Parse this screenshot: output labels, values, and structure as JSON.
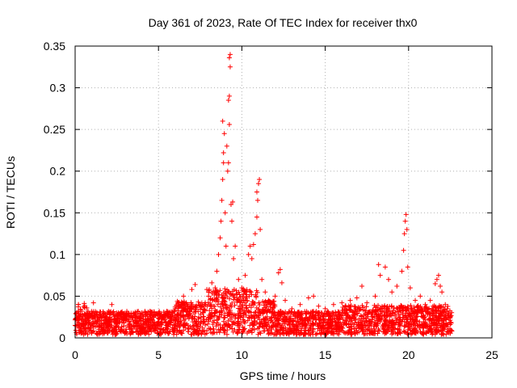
{
  "chart_data": {
    "type": "scatter",
    "title": "Day 361 of 2023, Rate Of TEC Index for receiver thx0",
    "xlabel": "GPS time / hours",
    "ylabel": "ROTI / TECUs",
    "xlim": [
      0,
      25
    ],
    "ylim": [
      0,
      0.35
    ],
    "xticks": [
      0,
      5,
      10,
      15,
      20,
      25
    ],
    "xtick_labels": [
      "0",
      "5",
      "10",
      "15",
      "20",
      "25"
    ],
    "yticks": [
      0,
      0.05,
      0.1,
      0.15,
      0.2,
      0.25,
      0.3,
      0.35
    ],
    "ytick_labels": [
      "0",
      "0.05",
      "0.1",
      "0.15",
      "0.2",
      "0.25",
      "0.3",
      "0.35"
    ],
    "grid": true,
    "marker": "+",
    "color": "#ff0000",
    "series": [
      {
        "points": [
          [
            0.0,
            0.015
          ],
          [
            0.2,
            0.04
          ],
          [
            0.4,
            0.032
          ],
          [
            0.7,
            0.036
          ],
          [
            1.0,
            0.03
          ],
          [
            1.1,
            0.042
          ],
          [
            1.5,
            0.028
          ],
          [
            2.0,
            0.032
          ],
          [
            2.2,
            0.04
          ],
          [
            2.6,
            0.03
          ],
          [
            3.0,
            0.028
          ],
          [
            3.5,
            0.026
          ],
          [
            4.0,
            0.03
          ],
          [
            4.5,
            0.032
          ],
          [
            5.0,
            0.028
          ],
          [
            5.5,
            0.032
          ],
          [
            6.0,
            0.035
          ],
          [
            6.5,
            0.05
          ],
          [
            7.0,
            0.058
          ],
          [
            7.2,
            0.064
          ],
          [
            7.6,
            0.042
          ],
          [
            7.9,
            0.058
          ],
          [
            8.0,
            0.05
          ],
          [
            8.2,
            0.066
          ],
          [
            8.4,
            0.06
          ],
          [
            8.5,
            0.08
          ],
          [
            8.6,
            0.1
          ],
          [
            8.7,
            0.12
          ],
          [
            8.75,
            0.14
          ],
          [
            8.8,
            0.165
          ],
          [
            8.85,
            0.19
          ],
          [
            8.9,
            0.21
          ],
          [
            8.95,
            0.245
          ],
          [
            8.85,
            0.26
          ],
          [
            8.9,
            0.222
          ],
          [
            9.0,
            0.15
          ],
          [
            9.05,
            0.11
          ],
          [
            9.1,
            0.23
          ],
          [
            9.15,
            0.2
          ],
          [
            9.2,
            0.21
          ],
          [
            9.25,
            0.256
          ],
          [
            9.2,
            0.285
          ],
          [
            9.25,
            0.29
          ],
          [
            9.3,
            0.34
          ],
          [
            9.25,
            0.336
          ],
          [
            9.3,
            0.325
          ],
          [
            9.35,
            0.16
          ],
          [
            9.4,
            0.14
          ],
          [
            9.45,
            0.163
          ],
          [
            9.5,
            0.095
          ],
          [
            9.6,
            0.11
          ],
          [
            9.8,
            0.07
          ],
          [
            10.0,
            0.06
          ],
          [
            10.2,
            0.075
          ],
          [
            10.4,
            0.1
          ],
          [
            10.5,
            0.11
          ],
          [
            10.6,
            0.095
          ],
          [
            10.7,
            0.112
          ],
          [
            10.8,
            0.125
          ],
          [
            10.9,
            0.145
          ],
          [
            10.95,
            0.165
          ],
          [
            11.0,
            0.185
          ],
          [
            11.05,
            0.19
          ],
          [
            10.9,
            0.175
          ],
          [
            11.1,
            0.13
          ],
          [
            11.2,
            0.07
          ],
          [
            11.4,
            0.055
          ],
          [
            11.6,
            0.045
          ],
          [
            12.0,
            0.05
          ],
          [
            12.2,
            0.078
          ],
          [
            12.3,
            0.082
          ],
          [
            12.4,
            0.066
          ],
          [
            12.6,
            0.045
          ],
          [
            13.0,
            0.035
          ],
          [
            13.5,
            0.04
          ],
          [
            14.0,
            0.048
          ],
          [
            14.3,
            0.05
          ],
          [
            14.6,
            0.038
          ],
          [
            15.0,
            0.035
          ],
          [
            15.5,
            0.04
          ],
          [
            16.0,
            0.042
          ],
          [
            16.5,
            0.045
          ],
          [
            16.9,
            0.048
          ],
          [
            17.2,
            0.062
          ],
          [
            17.5,
            0.042
          ],
          [
            18.0,
            0.05
          ],
          [
            18.2,
            0.088
          ],
          [
            18.3,
            0.075
          ],
          [
            18.6,
            0.085
          ],
          [
            18.8,
            0.07
          ],
          [
            19.0,
            0.055
          ],
          [
            19.3,
            0.062
          ],
          [
            19.6,
            0.08
          ],
          [
            19.7,
            0.105
          ],
          [
            19.75,
            0.125
          ],
          [
            19.8,
            0.14
          ],
          [
            19.85,
            0.148
          ],
          [
            19.9,
            0.13
          ],
          [
            19.95,
            0.085
          ],
          [
            20.1,
            0.06
          ],
          [
            20.4,
            0.045
          ],
          [
            20.7,
            0.05
          ],
          [
            21.0,
            0.04
          ],
          [
            21.3,
            0.045
          ],
          [
            21.6,
            0.065
          ],
          [
            21.7,
            0.07
          ],
          [
            21.8,
            0.075
          ],
          [
            21.9,
            0.062
          ],
          [
            22.0,
            0.055
          ],
          [
            22.2,
            0.04
          ],
          [
            22.4,
            0.03
          ],
          [
            22.5,
            0.025
          ]
        ]
      }
    ]
  }
}
